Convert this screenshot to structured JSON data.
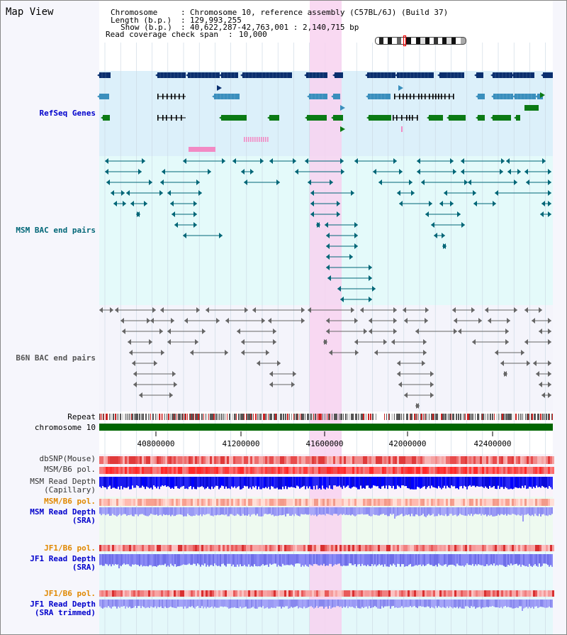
{
  "header": {
    "view_title": "Map View",
    "chromosome_label": "Chromosome",
    "chromosome_value": "Chromosome 10, reference assembly (C57BL/6J) (Build 37)",
    "length_label": "Length (b.p.)",
    "length_value": "129,993,255",
    "show_label": "Show (b.p.)",
    "show_value": "40,622,287-42,763,001 : 2,140,715 bp",
    "coverage_label": "Read coverage check span",
    "coverage_value": "10,000"
  },
  "tracks": {
    "refseq": "RefSeq Genes",
    "msm_bac": "MSM BAC end pairs",
    "b6n_bac": "B6N BAC end pairs",
    "repeat": "Repeat",
    "chromosome": "chromosome 10",
    "dbsnp": "dbSNP(Mouse)",
    "msm_b6_pol": "MSM/B6 pol.",
    "msm_depth_cap_1": "MSM Read Depth",
    "msm_depth_cap_2": "(Capillary)",
    "msm_b6_pol_2": "MSM/B6 pol.",
    "msm_depth_sra_1": "MSM Read Depth",
    "msm_depth_sra_2": "(SRA)",
    "jf1_b6_pol": "JF1/B6 pol.",
    "jf1_depth_sra_1": "JF1 Read Depth",
    "jf1_depth_sra_2": "(SRA)",
    "jf1_b6_pol_2": "JF1/B6 pol.",
    "jf1_depth_trim_1": "JF1 Read Depth",
    "jf1_depth_trim_2": "(SRA trimmed)"
  },
  "axis": {
    "ticks": [
      "40800000",
      "41200000",
      "41600000",
      "42000000",
      "42400000"
    ]
  },
  "colors": {
    "label_black": "#000000",
    "label_blue": "#0000cc",
    "label_teal": "#006677",
    "label_gray": "#555555",
    "label_orange": "#e08800",
    "refseq_bg": "#dcf0fa",
    "msm_bg": "#e4fafa",
    "b6n_bg": "#f4f4fb",
    "highlight": "#f8d2f0",
    "gene_navy": "#0a2f6e",
    "gene_teal": "#3a8fbd",
    "gene_green": "#0b7a14",
    "chrom_green": "#006600"
  }
}
